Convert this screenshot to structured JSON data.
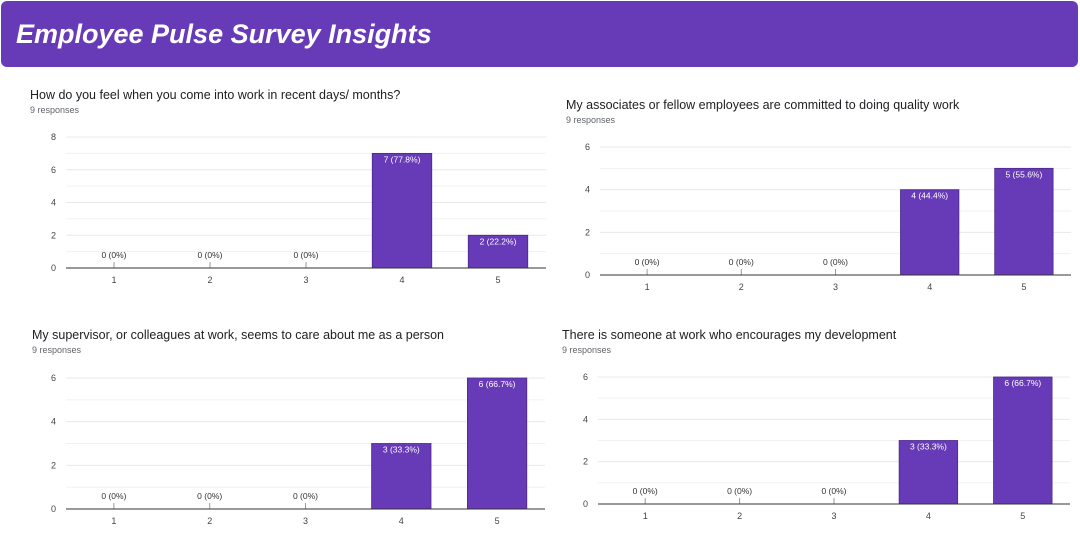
{
  "header": {
    "title": "Employee Pulse Survey Insights"
  },
  "colors": {
    "accent": "#673ab7",
    "bar": "#673ab7",
    "grid": "#e8e8e8",
    "axis": "#333333"
  },
  "chart_data": [
    {
      "type": "bar",
      "title": "How do you feel when you come into work in recent days/ months?",
      "response_count": "9 responses",
      "categories": [
        "1",
        "2",
        "3",
        "4",
        "5"
      ],
      "values": [
        0,
        0,
        0,
        7,
        2
      ],
      "labels": [
        "0 (0%)",
        "0 (0%)",
        "0 (0%)",
        "7 (77.8%)",
        "2 (22.2%)"
      ],
      "y_ticks": [
        "0",
        "2",
        "4",
        "6",
        "8"
      ],
      "ylim": [
        0,
        8
      ],
      "grid": true,
      "legend": "none"
    },
    {
      "type": "bar",
      "title": "My associates or fellow employees are committed to doing quality work",
      "response_count": "9 responses",
      "categories": [
        "1",
        "2",
        "3",
        "4",
        "5"
      ],
      "values": [
        0,
        0,
        0,
        4,
        5
      ],
      "labels": [
        "0 (0%)",
        "0 (0%)",
        "0 (0%)",
        "4 (44.4%)",
        "5 (55.6%)"
      ],
      "y_ticks": [
        "0",
        "2",
        "4",
        "6"
      ],
      "ylim": [
        0,
        6
      ],
      "grid": true,
      "legend": "none"
    },
    {
      "type": "bar",
      "title": "My supervisor, or colleagues at work, seems to care about me as a person",
      "response_count": "9 responses",
      "categories": [
        "1",
        "2",
        "3",
        "4",
        "5"
      ],
      "values": [
        0,
        0,
        0,
        3,
        6
      ],
      "labels": [
        "0 (0%)",
        "0 (0%)",
        "0 (0%)",
        "3 (33.3%)",
        "6 (66.7%)"
      ],
      "y_ticks": [
        "0",
        "2",
        "4",
        "6"
      ],
      "ylim": [
        0,
        6
      ],
      "grid": true,
      "legend": "none"
    },
    {
      "type": "bar",
      "title": "There is someone at work who encourages my development",
      "response_count": "9 responses",
      "categories": [
        "1",
        "2",
        "3",
        "4",
        "5"
      ],
      "values": [
        0,
        0,
        0,
        3,
        6
      ],
      "labels": [
        "0 (0%)",
        "0 (0%)",
        "0 (0%)",
        "3 (33.3%)",
        "6 (66.7%)"
      ],
      "y_ticks": [
        "0",
        "2",
        "4",
        "6"
      ],
      "ylim": [
        0,
        6
      ],
      "grid": true,
      "legend": "none"
    }
  ]
}
